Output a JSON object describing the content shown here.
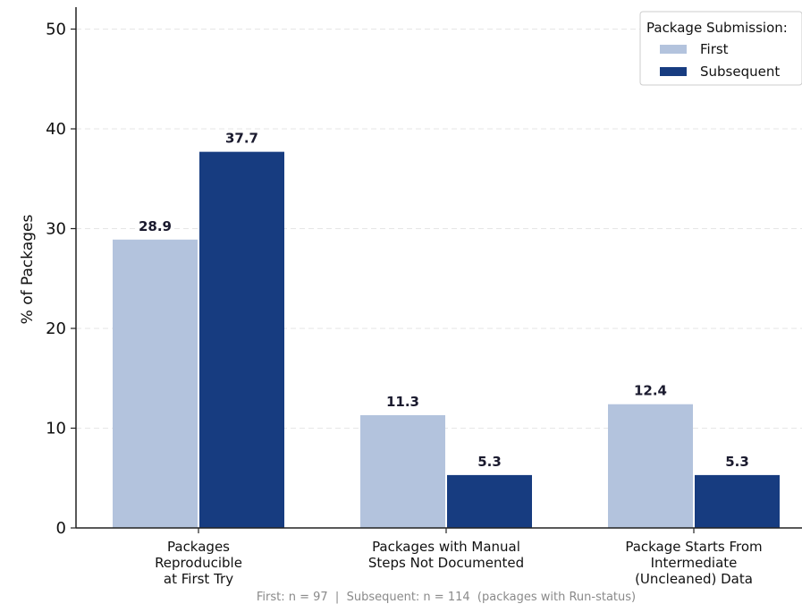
{
  "chart_data": {
    "type": "bar",
    "categories": [
      [
        "Packages",
        "Reproducible",
        "at First Try"
      ],
      [
        "Packages with Manual",
        "Steps Not Documented"
      ],
      [
        "Package Starts From",
        "Intermediate",
        "(Uncleaned) Data"
      ]
    ],
    "series": [
      {
        "name": "First",
        "values": [
          28.9,
          11.3,
          12.4
        ],
        "color": "#b3c3dd"
      },
      {
        "name": "Subsequent",
        "values": [
          37.7,
          5.3,
          5.3
        ],
        "color": "#173c80"
      }
    ],
    "ylabel": "% of Packages",
    "ylim": [
      0,
      52
    ],
    "yticks": [
      0,
      10,
      20,
      30,
      40,
      50
    ],
    "grid": true,
    "legend": {
      "title": "Package Submission:",
      "position": "top-right"
    },
    "footnote": "First: n = 97  |  Subsequent: n = 114  (packages with Run-status)"
  }
}
